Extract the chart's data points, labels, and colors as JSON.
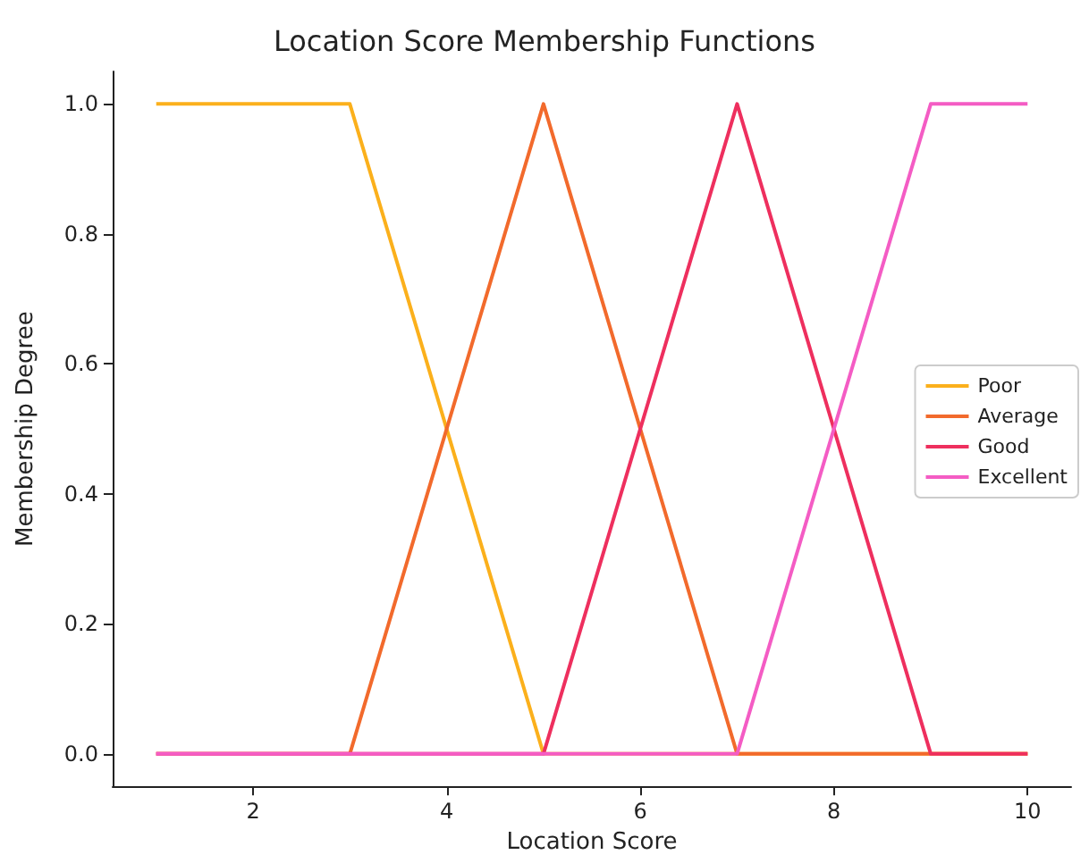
{
  "chart_data": {
    "type": "line",
    "title": "Location Score Membership Functions",
    "xlabel": "Location Score",
    "ylabel": "Membership Degree",
    "x": [
      1,
      3,
      5,
      7,
      9,
      10
    ],
    "series": [
      {
        "name": "Poor",
        "color": "#fbb01c",
        "values": [
          1,
          1,
          0,
          0,
          0,
          0
        ]
      },
      {
        "name": "Average",
        "color": "#f26a2c",
        "values": [
          0,
          0,
          1,
          0,
          0,
          0
        ]
      },
      {
        "name": "Good",
        "color": "#ee2f5e",
        "values": [
          0,
          0,
          0,
          1,
          0,
          0
        ]
      },
      {
        "name": "Excellent",
        "color": "#f45cc4",
        "values": [
          0,
          0,
          0,
          0,
          1,
          1
        ]
      }
    ],
    "xlim": [
      0.55,
      10.45
    ],
    "xticks": [
      2,
      4,
      6,
      8,
      10
    ],
    "ylim": [
      -0.05,
      1.05
    ],
    "yticks": [
      {
        "value": 0,
        "label": "0.0"
      },
      {
        "value": 0.2,
        "label": "0.2"
      },
      {
        "value": 0.4,
        "label": "0.4"
      },
      {
        "value": 0.6,
        "label": "0.6"
      },
      {
        "value": 0.8,
        "label": "0.8"
      },
      {
        "value": 1,
        "label": "1.0"
      }
    ],
    "grid": false,
    "legend": "right",
    "marker": "none",
    "line_style": "solid"
  }
}
